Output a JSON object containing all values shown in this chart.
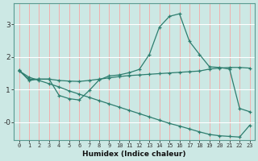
{
  "xlabel": "Humidex (Indice chaleur)",
  "background_color": "#cce8e4",
  "grid_color": "#aacccc",
  "line_color": "#2d7d6e",
  "xlim": [
    -0.5,
    23.5
  ],
  "ylim": [
    -0.55,
    3.65
  ],
  "x_ticks": [
    0,
    1,
    2,
    3,
    4,
    5,
    6,
    7,
    8,
    9,
    10,
    11,
    12,
    13,
    14,
    15,
    16,
    17,
    18,
    19,
    20,
    21,
    22,
    23
  ],
  "y_ticks": [
    0,
    1,
    2,
    3
  ],
  "y_tick_labels": [
    "-0",
    "1",
    "2",
    "3"
  ],
  "series1_x": [
    0,
    1,
    2,
    3,
    4,
    5,
    6,
    7,
    8,
    9,
    10,
    11,
    12,
    13,
    14,
    15,
    16,
    17,
    18,
    19,
    20,
    21,
    22,
    23
  ],
  "series1_y": [
    1.6,
    1.28,
    1.32,
    1.32,
    0.82,
    0.72,
    0.68,
    0.97,
    1.3,
    1.42,
    1.45,
    1.52,
    1.62,
    2.08,
    2.92,
    3.25,
    3.33,
    2.48,
    2.08,
    1.7,
    1.68,
    1.63,
    0.42,
    0.32
  ],
  "series2_x": [
    0,
    1,
    2,
    3,
    4,
    5,
    6,
    7,
    8,
    9,
    10,
    11,
    12,
    13,
    14,
    15,
    16,
    17,
    18,
    19,
    20,
    21,
    22,
    23
  ],
  "series2_y": [
    1.58,
    1.32,
    1.32,
    1.32,
    1.28,
    1.26,
    1.25,
    1.28,
    1.32,
    1.36,
    1.4,
    1.43,
    1.45,
    1.47,
    1.49,
    1.51,
    1.53,
    1.55,
    1.57,
    1.63,
    1.66,
    1.68,
    1.68,
    1.66
  ],
  "series3_x": [
    0,
    1,
    2,
    3,
    4,
    5,
    6,
    7,
    8,
    9,
    10,
    11,
    12,
    13,
    14,
    15,
    16,
    17,
    18,
    19,
    20,
    21,
    22,
    23
  ],
  "series3_y": [
    1.58,
    1.38,
    1.28,
    1.18,
    1.08,
    0.96,
    0.86,
    0.76,
    0.66,
    0.56,
    0.46,
    0.36,
    0.26,
    0.16,
    0.06,
    -0.04,
    -0.12,
    -0.21,
    -0.3,
    -0.38,
    -0.42,
    -0.44,
    -0.46,
    -0.1
  ]
}
